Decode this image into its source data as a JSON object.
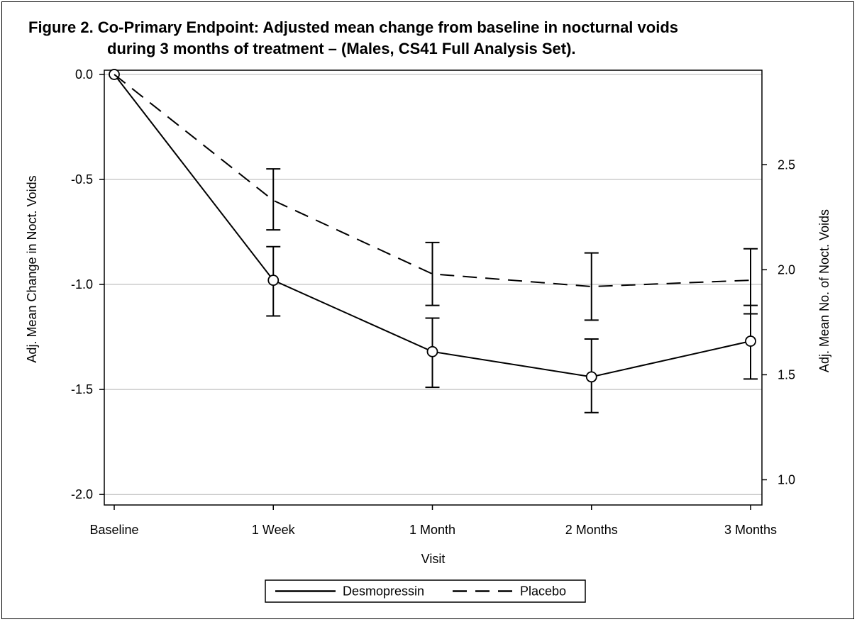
{
  "title_line1": "Figure 2. Co-Primary Endpoint: Adjusted mean change from baseline in nocturnal voids",
  "title_line2": "during 3 months of treatment – (Males, CS41 Full Analysis Set).",
  "chart_data": {
    "type": "line",
    "title": "Figure 2. Co-Primary Endpoint: Adjusted mean change from baseline in nocturnal voids during 3 months of treatment – (Males, CS41 Full Analysis Set).",
    "xlabel": "Visit",
    "ylabel": "Adj. Mean Change in Noct. Voids",
    "y2label": "Adj. Mean No. of Noct. Voids",
    "categories": [
      "Baseline",
      "1 Week",
      "1 Month",
      "2 Months",
      "3 Months"
    ],
    "ylim": [
      -2.05,
      0.02
    ],
    "yticks": [
      "0.0",
      "-0.5",
      "-1.0",
      "-1.5",
      "-2.0"
    ],
    "yticks_values": [
      0.0,
      -0.5,
      -1.0,
      -1.5,
      -2.0
    ],
    "y2lim": [
      0.88,
      2.95
    ],
    "y2ticks": [
      "1.0",
      "1.5",
      "2.0",
      "2.5"
    ],
    "y2ticks_values": [
      1.0,
      1.5,
      2.0,
      2.5
    ],
    "grid": true,
    "legend_position": "bottom-center",
    "series": [
      {
        "name": "Desmopressin",
        "line_style": "solid",
        "marker": "circle",
        "values": [
          0.0,
          -0.98,
          -1.32,
          -1.44,
          -1.27
        ],
        "lower": [
          null,
          -1.15,
          -1.49,
          -1.61,
          -1.45
        ],
        "upper": [
          null,
          -0.82,
          -1.16,
          -1.26,
          -1.1
        ]
      },
      {
        "name": "Placebo",
        "line_style": "dashed",
        "marker": "none",
        "values": [
          0.0,
          -0.6,
          -0.95,
          -1.01,
          -0.98
        ],
        "lower": [
          null,
          -0.74,
          -1.1,
          -1.17,
          -1.14
        ],
        "upper": [
          null,
          -0.45,
          -0.8,
          -0.85,
          -0.83
        ]
      }
    ],
    "color": "#000000",
    "grid_color": "#b3b3b3"
  }
}
